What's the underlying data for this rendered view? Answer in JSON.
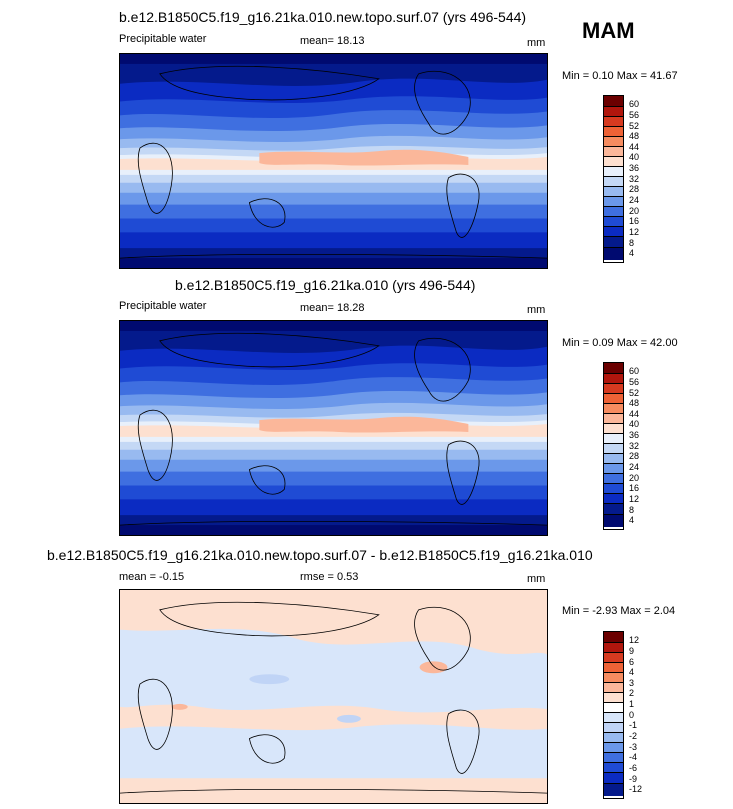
{
  "season": "MAM",
  "panels": [
    {
      "id": "exp",
      "title": "b.e12.B1850C5.f19_g16.21ka.010.new.topo.surf.07 (yrs 496-544)",
      "variable": "Precipitable water",
      "mean": "mean=  18.13",
      "units": "mm",
      "minmax": "Min =   0.10 Max =  41.67",
      "levels": [
        "60",
        "56",
        "52",
        "48",
        "44",
        "40",
        "36",
        "32",
        "28",
        "24",
        "20",
        "16",
        "12",
        "8",
        "4"
      ]
    },
    {
      "id": "ctl",
      "title": "b.e12.B1850C5.f19_g16.21ka.010 (yrs 496-544)",
      "variable": "Precipitable water",
      "mean": "mean=  18.28",
      "units": "mm",
      "minmax": "Min =  0.09 Max =  42.00",
      "levels": [
        "60",
        "56",
        "52",
        "48",
        "44",
        "40",
        "36",
        "32",
        "28",
        "24",
        "20",
        "16",
        "12",
        "8",
        "4"
      ]
    },
    {
      "id": "diff",
      "title": "b.e12.B1850C5.f19_g16.21ka.010.new.topo.surf.07 - b.e12.B1850C5.f19_g16.21ka.010",
      "variable": "mean =  -0.15",
      "mean": "rmse =   0.53",
      "units": "mm",
      "minmax": "Min =  -2.93 Max =   2.04",
      "levels": [
        "12",
        "9",
        "6",
        "4",
        "3",
        "2",
        "1",
        "0",
        "-1",
        "-2",
        "-3",
        "-4",
        "-6",
        "-9",
        "-12"
      ]
    }
  ],
  "colors": {
    "abs_scale": [
      "#6b0000",
      "#b0160d",
      "#d63a20",
      "#ee6236",
      "#f68c60",
      "#fbb79a",
      "#fde0d0",
      "#e8f0fb",
      "#c4d8f5",
      "#98baf0",
      "#6b98ea",
      "#3f6fe0",
      "#1f4bd4",
      "#0b2bc2",
      "#041a8c",
      "#000a70"
    ],
    "diff_scale": [
      "#6b0000",
      "#b0160d",
      "#d63a20",
      "#ee6236",
      "#f68c60",
      "#fbb79a",
      "#fde0d0",
      "#ffffff",
      "#d8e6fa",
      "#c0d4f6",
      "#98baf0",
      "#6b98ea",
      "#3f6fe0",
      "#1f4bd4",
      "#0b2bc2",
      "#041a8c"
    ]
  }
}
